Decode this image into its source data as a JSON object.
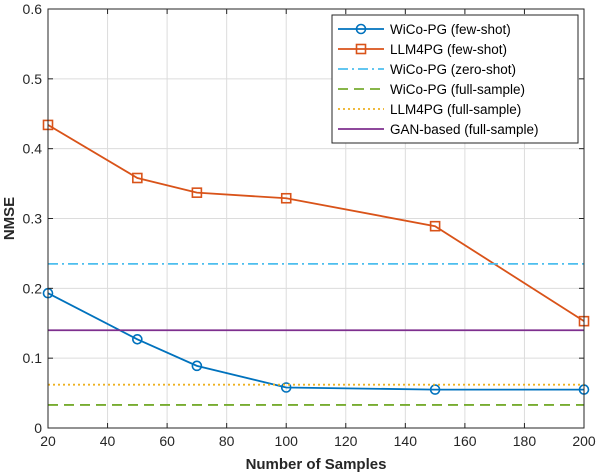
{
  "chart_data": {
    "type": "line",
    "xlabel": "Number of Samples",
    "ylabel": "NMSE",
    "xlim": [
      20,
      200
    ],
    "ylim": [
      0,
      0.6
    ],
    "xticks": [
      20,
      40,
      60,
      80,
      100,
      120,
      140,
      160,
      180,
      200
    ],
    "yticks": [
      0,
      0.1,
      0.2,
      0.3,
      0.4,
      0.5,
      0.6
    ],
    "xtick_labels": [
      "20",
      "40",
      "60",
      "80",
      "100",
      "120",
      "140",
      "160",
      "180",
      "200"
    ],
    "ytick_labels": [
      "0",
      "0.1",
      "0.2",
      "0.3",
      "0.4",
      "0.5",
      "0.6"
    ],
    "grid": true,
    "legend_position": "top-right",
    "series": [
      {
        "name": "WiCo-PG (few-shot)",
        "style": "solid",
        "marker": "circle",
        "color": "#0072BD",
        "x": [
          20,
          50,
          70,
          100,
          150,
          200
        ],
        "y": [
          0.193,
          0.127,
          0.089,
          0.058,
          0.055,
          0.055
        ]
      },
      {
        "name": "LLM4PG (few-shot)",
        "style": "solid",
        "marker": "square",
        "color": "#D95319",
        "x": [
          20,
          50,
          70,
          100,
          150,
          200
        ],
        "y": [
          0.434,
          0.358,
          0.337,
          0.329,
          0.289,
          0.153
        ]
      },
      {
        "name": "WiCo-PG (zero-shot)",
        "style": "dashdot",
        "marker": "none",
        "color": "#4DBEEE",
        "x": [
          20,
          200
        ],
        "y": [
          0.235,
          0.235
        ]
      },
      {
        "name": "WiCo-PG (full-sample)",
        "style": "dashed",
        "marker": "none",
        "color": "#77AC30",
        "x": [
          20,
          200
        ],
        "y": [
          0.033,
          0.033
        ]
      },
      {
        "name": "LLM4PG (full-sample)",
        "style": "dotted",
        "marker": "none",
        "color": "#EDB120",
        "x": [
          20,
          200
        ],
        "y": [
          0.062,
          0.062
        ]
      },
      {
        "name": "GAN-based (full-sample)",
        "style": "solid",
        "marker": "none",
        "color": "#7E2F8E",
        "x": [
          20,
          200
        ],
        "y": [
          0.14,
          0.14
        ]
      }
    ]
  }
}
